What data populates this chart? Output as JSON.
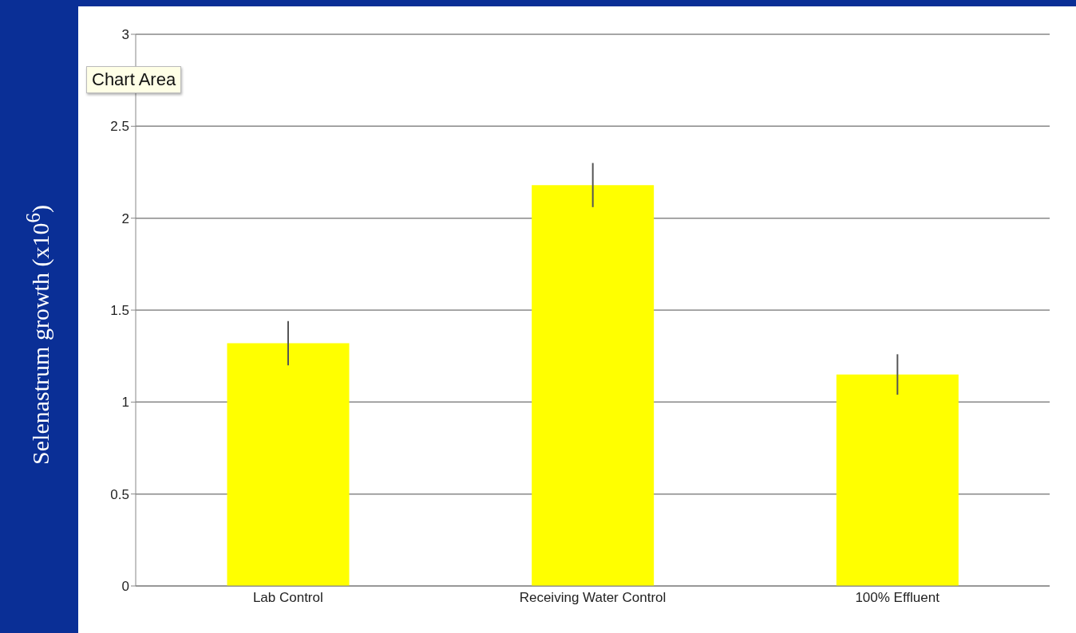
{
  "chart_data": {
    "type": "bar",
    "ylabel": "Selenastrum growth (x10$^{6}$)",
    "categories": [
      "Lab Control",
      "Receiving Water Control",
      "100% Effluent"
    ],
    "values": [
      1.32,
      2.18,
      1.15
    ],
    "errors": [
      0.12,
      0.12,
      0.11
    ],
    "color": "#ffff00",
    "ylim": [
      0,
      3
    ],
    "yticks": [
      0,
      0.5,
      1,
      1.5,
      2,
      2.5,
      3
    ],
    "grid": "y",
    "annotations": [
      "Chart Area"
    ]
  }
}
